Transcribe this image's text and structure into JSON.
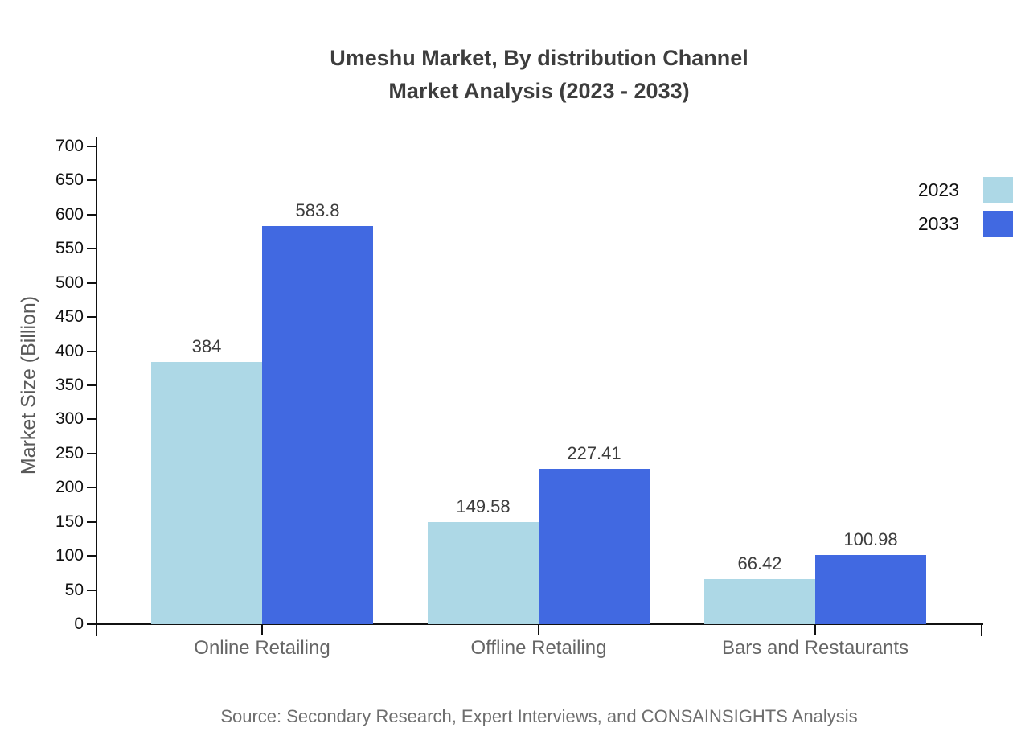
{
  "chart_data": {
    "type": "bar",
    "title_line1": "Umeshu Market, By distribution Channel",
    "title_line2": "Market Analysis (2023 - 2033)",
    "ylabel": "Market Size (Billion)",
    "ylim": [
      0,
      700
    ],
    "ytick_step": 50,
    "grid": false,
    "legend_position": "top-right",
    "categories": [
      "Online Retailing",
      "Offline Retailing",
      "Bars and Restaurants"
    ],
    "series": [
      {
        "name": "2023",
        "color": "#ADD8E6",
        "values": [
          384,
          149.58,
          66.42
        ],
        "labels": [
          "384",
          "149.58",
          "66.42"
        ]
      },
      {
        "name": "2033",
        "color": "#4169E1",
        "values": [
          583.8,
          227.41,
          100.98
        ],
        "labels": [
          "583.8",
          "227.41",
          "100.98"
        ]
      }
    ],
    "source": "Source: Secondary Research, Expert Interviews, and CONSAINSIGHTS Analysis"
  }
}
